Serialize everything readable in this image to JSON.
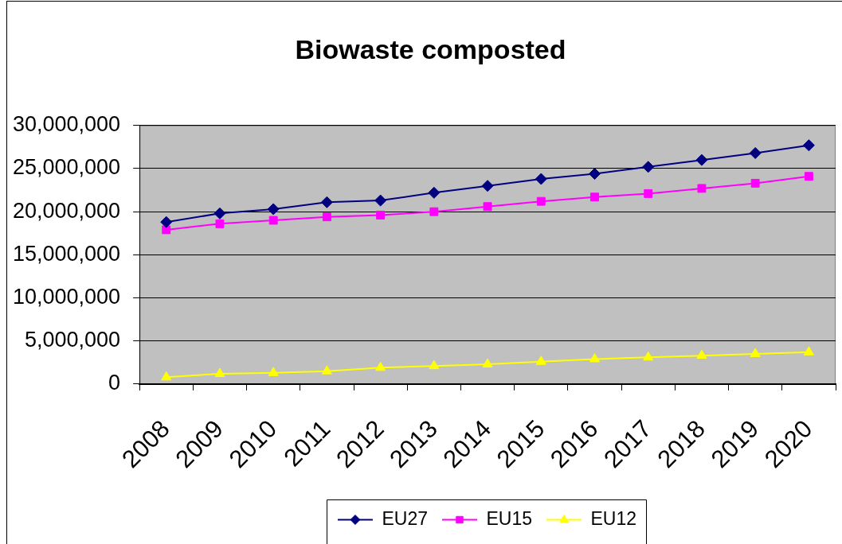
{
  "chart_data": {
    "type": "line",
    "title": "Biowaste composted",
    "categories": [
      "2008",
      "2009",
      "2010",
      "2011",
      "2012",
      "2013",
      "2014",
      "2015",
      "2016",
      "2017",
      "2018",
      "2019",
      "2020"
    ],
    "series": [
      {
        "name": "EU27",
        "color": "#000080",
        "marker": "diamond",
        "values": [
          18800000,
          19800000,
          20300000,
          21100000,
          21300000,
          22200000,
          23000000,
          23800000,
          24400000,
          25200000,
          26000000,
          26800000,
          27700000
        ]
      },
      {
        "name": "EU15",
        "color": "#ff00ff",
        "marker": "square",
        "values": [
          17900000,
          18600000,
          19000000,
          19400000,
          19600000,
          20000000,
          20600000,
          21200000,
          21700000,
          22100000,
          22700000,
          23300000,
          24100000
        ]
      },
      {
        "name": "EU12",
        "color": "#ffff00",
        "marker": "triangle",
        "values": [
          800000,
          1200000,
          1300000,
          1500000,
          1900000,
          2100000,
          2300000,
          2600000,
          2900000,
          3100000,
          3300000,
          3500000,
          3700000
        ]
      }
    ],
    "ylim": [
      0,
      30000000
    ],
    "yticks": [
      0,
      {
        "value": 5000000,
        "label": "5,000,000"
      },
      {
        "value": 10000000,
        "label": "10,000,000"
      },
      {
        "value": 15000000,
        "label": "15,000,000"
      },
      {
        "value": 20000000,
        "label": "20,000,000"
      },
      {
        "value": 25000000,
        "label": "25,000,000"
      },
      {
        "value": 30000000,
        "label": "30,000,000"
      }
    ],
    "grid": "y",
    "legend": "bottom"
  }
}
